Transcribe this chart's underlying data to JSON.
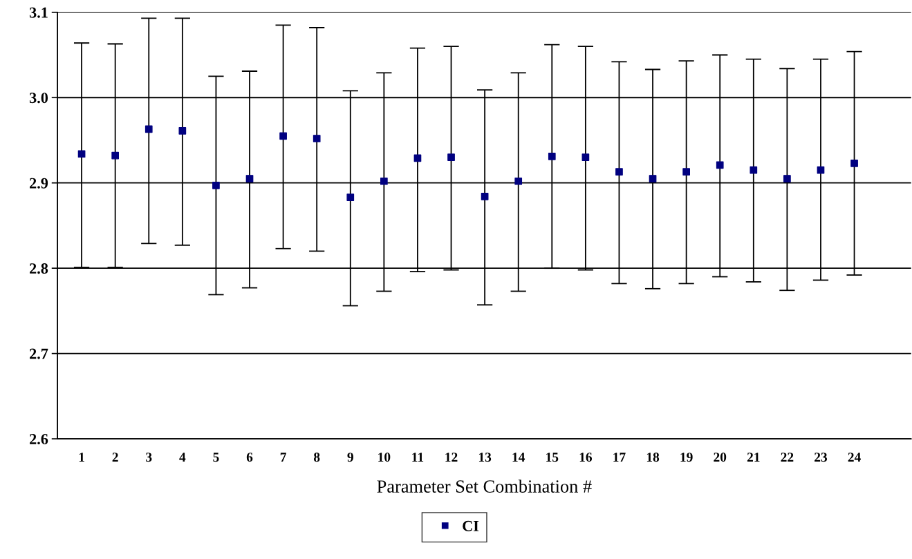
{
  "chart_data": {
    "type": "scatter",
    "xlabel": "Parameter Set Combination #",
    "categories": [
      "1",
      "2",
      "3",
      "4",
      "5",
      "6",
      "7",
      "8",
      "9",
      "10",
      "11",
      "12",
      "13",
      "14",
      "15",
      "16",
      "17",
      "18",
      "19",
      "20",
      "21",
      "22",
      "23",
      "24"
    ],
    "series": [
      {
        "name": "CI",
        "color": "#000080",
        "values": [
          2.934,
          2.932,
          2.963,
          2.961,
          2.897,
          2.905,
          2.955,
          2.952,
          2.883,
          2.902,
          2.929,
          2.93,
          2.884,
          2.902,
          2.931,
          2.93,
          2.913,
          2.905,
          2.913,
          2.921,
          2.915,
          2.905,
          2.915,
          2.923
        ],
        "errors": [
          [
            2.801,
            3.064
          ],
          [
            2.801,
            3.063
          ],
          [
            2.829,
            3.093
          ],
          [
            2.827,
            3.093
          ],
          [
            2.769,
            3.025
          ],
          [
            2.777,
            3.031
          ],
          [
            2.823,
            3.085
          ],
          [
            2.82,
            3.082
          ],
          [
            2.756,
            3.008
          ],
          [
            2.773,
            3.029
          ],
          [
            2.796,
            3.058
          ],
          [
            2.798,
            3.06
          ],
          [
            2.757,
            3.009
          ],
          [
            2.773,
            3.029
          ],
          [
            2.8,
            3.062
          ],
          [
            2.798,
            3.06
          ],
          [
            2.782,
            3.042
          ],
          [
            2.776,
            3.033
          ],
          [
            2.782,
            3.043
          ],
          [
            2.79,
            3.05
          ],
          [
            2.784,
            3.045
          ],
          [
            2.774,
            3.034
          ],
          [
            2.786,
            3.045
          ],
          [
            2.792,
            3.054
          ]
        ]
      }
    ],
    "ylim": [
      2.6,
      3.1
    ],
    "yticks": [
      {
        "value": 2.6,
        "label": "2.6"
      },
      {
        "value": 2.7,
        "label": "2.7"
      },
      {
        "value": 2.8,
        "label": "2.8"
      },
      {
        "value": 2.9,
        "label": "2.9"
      },
      {
        "value": 3.0,
        "label": "3.0"
      },
      {
        "value": 3.1,
        "label": "3.1"
      }
    ],
    "grid": "y",
    "legend": "bottom",
    "marker": "square"
  }
}
